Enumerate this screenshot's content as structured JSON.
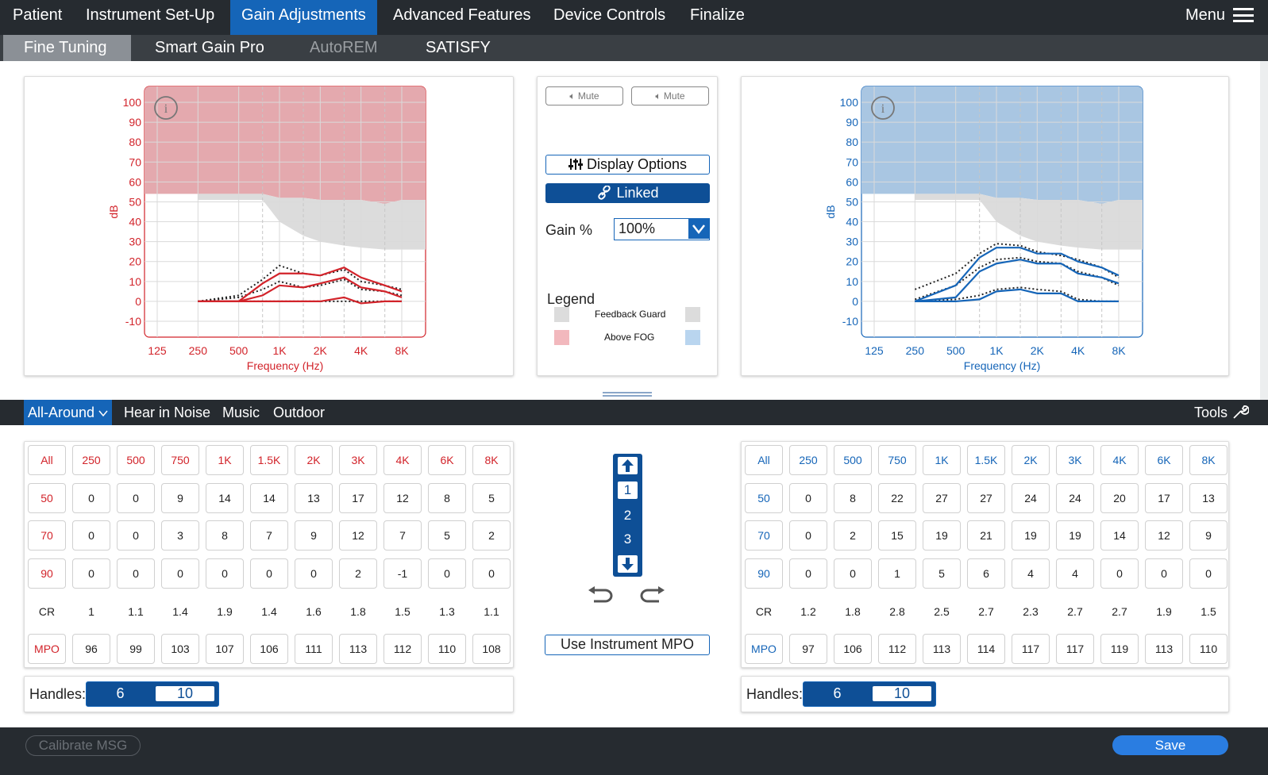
{
  "nav": {
    "tabs": [
      {
        "label": "Patient"
      },
      {
        "label": "Instrument Set-Up"
      },
      {
        "label": "Gain Adjustments"
      },
      {
        "label": "Advanced Features"
      },
      {
        "label": "Device Controls"
      },
      {
        "label": "Finalize"
      }
    ],
    "active_index": 2,
    "menu_label": "Menu"
  },
  "subnav": {
    "tabs": [
      {
        "label": "Fine Tuning",
        "state": "active"
      },
      {
        "label": "Smart Gain Pro",
        "state": "normal"
      },
      {
        "label": "AutoREM",
        "state": "disabled"
      },
      {
        "label": "SATISFY",
        "state": "normal"
      }
    ]
  },
  "chart_data": [
    {
      "type": "line",
      "side": "left",
      "color": "#d2232a",
      "xlabel": "Frequency (Hz)",
      "ylabel": "dB",
      "ylim": [
        -10,
        100
      ],
      "y_ticks": [
        100,
        90,
        80,
        70,
        60,
        50,
        40,
        30,
        20,
        10,
        0,
        -10
      ],
      "x_ticks": [
        "125",
        "250",
        "500",
        "1K",
        "2K",
        "4K",
        "8K"
      ],
      "x": [
        250,
        500,
        750,
        1000,
        1500,
        2000,
        3000,
        4000,
        6000,
        8000
      ],
      "fog_level": [
        54,
        54,
        54,
        52,
        52,
        51,
        51,
        51,
        49,
        51
      ],
      "feedback_guard": [
        51,
        51,
        51,
        40,
        33,
        30,
        28,
        27,
        26,
        26
      ],
      "series": [
        {
          "values": [
            0,
            0,
            9,
            14,
            14,
            13,
            17,
            12,
            8,
            5
          ]
        },
        {
          "values": [
            0,
            0,
            3,
            8,
            7,
            9,
            12,
            7,
            5,
            2
          ]
        },
        {
          "values": [
            0,
            0,
            0,
            0,
            0,
            0,
            2,
            -1,
            0,
            0
          ]
        }
      ],
      "targets": [
        {
          "values": [
            0,
            3,
            11,
            18,
            14,
            13,
            16,
            10,
            8,
            6
          ]
        },
        {
          "values": [
            0,
            2,
            6,
            10,
            7,
            8,
            11,
            6,
            5,
            3
          ]
        },
        {
          "values": [
            0,
            0,
            0,
            0,
            0,
            0,
            0,
            0,
            0,
            0
          ]
        }
      ]
    },
    {
      "type": "line",
      "side": "right",
      "color": "#1565b8",
      "xlabel": "Frequency (Hz)",
      "ylabel": "dB",
      "ylim": [
        -10,
        100
      ],
      "y_ticks": [
        100,
        90,
        80,
        70,
        60,
        50,
        40,
        30,
        20,
        10,
        0,
        -10
      ],
      "x_ticks": [
        "125",
        "250",
        "500",
        "1K",
        "2K",
        "4K",
        "8K"
      ],
      "x": [
        250,
        500,
        750,
        1000,
        1500,
        2000,
        3000,
        4000,
        6000,
        8000
      ],
      "fog_level": [
        54,
        54,
        54,
        52,
        52,
        51,
        51,
        51,
        49,
        51
      ],
      "feedback_guard": [
        51,
        51,
        51,
        40,
        33,
        30,
        28,
        27,
        26,
        26
      ],
      "series": [
        {
          "values": [
            0,
            8,
            22,
            27,
            27,
            24,
            24,
            20,
            17,
            13
          ]
        },
        {
          "values": [
            0,
            2,
            15,
            19,
            21,
            19,
            19,
            14,
            12,
            9
          ]
        },
        {
          "values": [
            0,
            0,
            1,
            5,
            6,
            4,
            4,
            0,
            0,
            0
          ]
        }
      ],
      "targets": [
        {
          "values": [
            6,
            14,
            24,
            29,
            28,
            25,
            23,
            21,
            17,
            12
          ]
        },
        {
          "values": [
            1,
            8,
            17,
            21,
            22,
            20,
            19,
            15,
            12,
            8
          ]
        },
        {
          "values": [
            0,
            1,
            3,
            6,
            7,
            6,
            5,
            1,
            0,
            0
          ]
        }
      ]
    }
  ],
  "center": {
    "mute_left": "Mute",
    "mute_right": "Mute",
    "display_options": "Display Options",
    "linked": "Linked",
    "gain_label": "Gain %",
    "gain_value": "100%",
    "legend_title": "Legend",
    "legend_items": [
      {
        "label": "Feedback Guard",
        "left_color": "#dcdcdc",
        "right_color": "#dcdcdc"
      },
      {
        "label": "Above FOG",
        "left_color": "#f2b8bd",
        "right_color": "#b9d5ef"
      }
    ]
  },
  "programs": {
    "tabs": [
      {
        "label": "All-Around",
        "active": true,
        "has_dropdown": true
      },
      {
        "label": "Hear in Noise",
        "active": false
      },
      {
        "label": "Music",
        "active": false
      },
      {
        "label": "Outdoor",
        "active": false
      }
    ],
    "tools_label": "Tools"
  },
  "grids": {
    "columns": [
      "All",
      "250",
      "500",
      "750",
      "1K",
      "1.5K",
      "2K",
      "3K",
      "4K",
      "6K",
      "8K"
    ],
    "left": {
      "rows": [
        {
          "label": "50",
          "values": [
            "0",
            "0",
            "9",
            "14",
            "14",
            "13",
            "17",
            "12",
            "8",
            "5"
          ],
          "boxed": true
        },
        {
          "label": "70",
          "values": [
            "0",
            "0",
            "3",
            "8",
            "7",
            "9",
            "12",
            "7",
            "5",
            "2"
          ],
          "boxed": true
        },
        {
          "label": "90",
          "values": [
            "0",
            "0",
            "0",
            "0",
            "0",
            "0",
            "2",
            "-1",
            "0",
            "0"
          ],
          "boxed": true
        },
        {
          "label": "CR",
          "values": [
            "1",
            "1.1",
            "1.4",
            "1.9",
            "1.4",
            "1.6",
            "1.8",
            "1.5",
            "1.3",
            "1.1"
          ],
          "boxed": false
        },
        {
          "label": "MPO",
          "values": [
            "96",
            "99",
            "103",
            "107",
            "106",
            "111",
            "113",
            "112",
            "110",
            "108"
          ],
          "boxed": true
        }
      ]
    },
    "right": {
      "rows": [
        {
          "label": "50",
          "values": [
            "0",
            "8",
            "22",
            "27",
            "27",
            "24",
            "24",
            "20",
            "17",
            "13"
          ],
          "boxed": true
        },
        {
          "label": "70",
          "values": [
            "0",
            "2",
            "15",
            "19",
            "21",
            "19",
            "19",
            "14",
            "12",
            "9"
          ],
          "boxed": true
        },
        {
          "label": "90",
          "values": [
            "0",
            "0",
            "1",
            "5",
            "6",
            "4",
            "4",
            "0",
            "0",
            "0"
          ],
          "boxed": true
        },
        {
          "label": "CR",
          "values": [
            "1.2",
            "1.8",
            "2.8",
            "2.5",
            "2.7",
            "2.3",
            "2.7",
            "2.7",
            "1.9",
            "1.5"
          ],
          "boxed": false
        },
        {
          "label": "MPO",
          "values": [
            "97",
            "106",
            "112",
            "113",
            "114",
            "117",
            "117",
            "119",
            "113",
            "110"
          ],
          "boxed": true
        }
      ]
    }
  },
  "handles": {
    "label": "Handles:",
    "option_a": "6",
    "option_b": "10",
    "selected": "10"
  },
  "memory": {
    "items": [
      "1",
      "2",
      "3"
    ],
    "selected": "1"
  },
  "use_mpo": "Use Instrument MPO",
  "footer": {
    "calibrate": "Calibrate MSG",
    "save": "Save"
  }
}
